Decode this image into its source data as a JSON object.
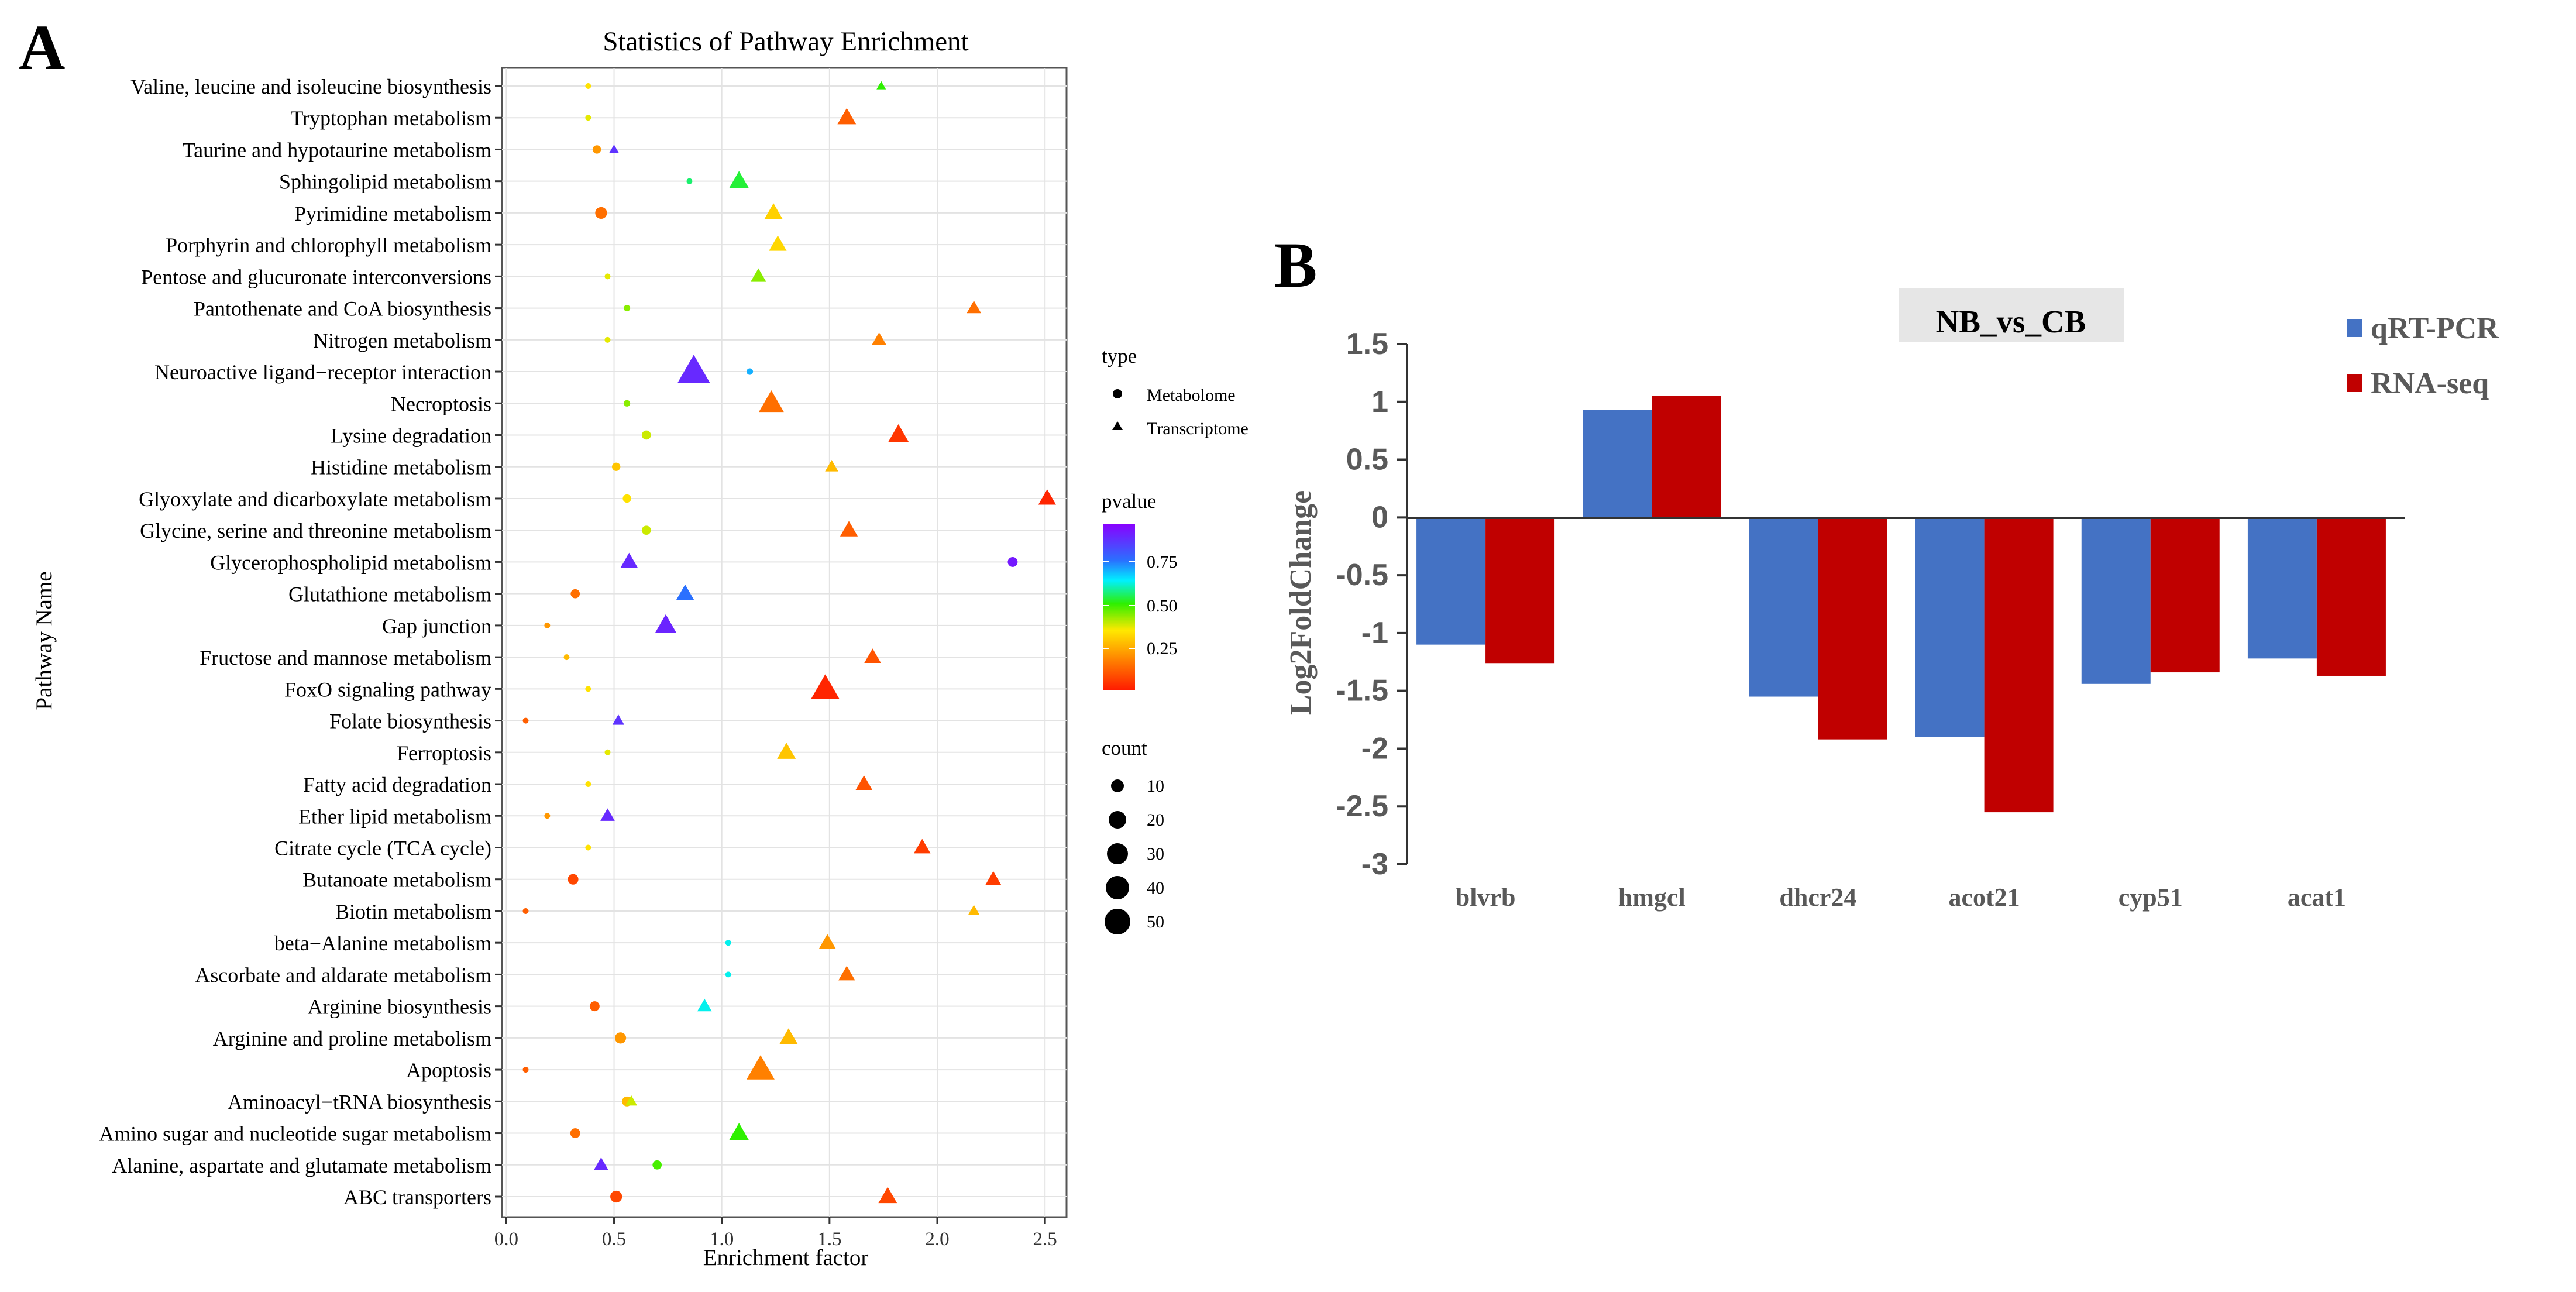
{
  "chart_data": [
    {
      "panel_label": "A",
      "type": "scatter",
      "title": "Statistics of Pathway Enrichment",
      "xlabel": "Enrichment factor",
      "ylabel": "Pathway Name",
      "xlim": [
        -0.02,
        2.6
      ],
      "x_ticks": [
        "0.0",
        "0.5",
        "1.0",
        "1.5",
        "2.0",
        "2.5"
      ],
      "grid": true,
      "legend_type": {
        "title": "type",
        "items": [
          "Metabolome",
          "Transcriptome"
        ]
      },
      "legend_pvalue": {
        "title": "pvalue",
        "ticks": [
          "0.75",
          "0.50",
          "0.25"
        ]
      },
      "legend_count": {
        "title": "count",
        "items": [
          "10",
          "20",
          "30",
          "40",
          "50"
        ]
      },
      "categories": [
        "Valine, leucine and isoleucine biosynthesis",
        "Tryptophan metabolism",
        "Taurine and hypotaurine metabolism",
        "Sphingolipid metabolism",
        "Pyrimidine metabolism",
        "Porphyrin and chlorophyll metabolism",
        "Pentose and glucuronate interconversions",
        "Pantothenate and CoA biosynthesis",
        "Nitrogen metabolism",
        "Neuroactive ligand−receptor interaction",
        "Necroptosis",
        "Lysine degradation",
        "Histidine metabolism",
        "Glyoxylate and dicarboxylate metabolism",
        "Glycine, serine and threonine metabolism",
        "Glycerophospholipid metabolism",
        "Glutathione metabolism",
        "Gap junction",
        "Fructose and mannose metabolism",
        "FoxO signaling pathway",
        "Folate biosynthesis",
        "Ferroptosis",
        "Fatty acid degradation",
        "Ether lipid metabolism",
        "Citrate cycle (TCA cycle)",
        "Butanoate metabolism",
        "Biotin metabolism",
        "beta−Alanine metabolism",
        "Ascorbate and aldarate metabolism",
        "Arginine biosynthesis",
        "Arginine and proline metabolism",
        "Apoptosis",
        "Aminoacyl−tRNA biosynthesis",
        "Amino sugar and nucleotide sugar metabolism",
        "Alanine, aspartate and glutamate metabolism",
        "ABC transporters"
      ],
      "series": [
        {
          "name": "Metabolome",
          "points": [
            {
              "row": 0,
              "x": 0.38,
              "count": 2,
              "pvalue": 0.35
            },
            {
              "row": 1,
              "x": 0.38,
              "count": 2,
              "pvalue": 0.38
            },
            {
              "row": 2,
              "x": 0.42,
              "count": 5,
              "pvalue": 0.22
            },
            {
              "row": 3,
              "x": 0.85,
              "count": 2,
              "pvalue": 0.58
            },
            {
              "row": 4,
              "x": 0.44,
              "count": 10,
              "pvalue": 0.15
            },
            {
              "row": 6,
              "x": 0.47,
              "count": 2,
              "pvalue": 0.38
            },
            {
              "row": 7,
              "x": 0.56,
              "count": 3,
              "pvalue": 0.45
            },
            {
              "row": 8,
              "x": 0.47,
              "count": 2,
              "pvalue": 0.38
            },
            {
              "row": 9,
              "x": 1.13,
              "count": 3,
              "pvalue": 0.72
            },
            {
              "row": 10,
              "x": 0.56,
              "count": 3,
              "pvalue": 0.45
            },
            {
              "row": 11,
              "x": 0.65,
              "count": 6,
              "pvalue": 0.4
            },
            {
              "row": 12,
              "x": 0.51,
              "count": 5,
              "pvalue": 0.3
            },
            {
              "row": 13,
              "x": 0.56,
              "count": 5,
              "pvalue": 0.35
            },
            {
              "row": 14,
              "x": 0.65,
              "count": 6,
              "pvalue": 0.4
            },
            {
              "row": 15,
              "x": 2.35,
              "count": 7,
              "pvalue": 0.95
            },
            {
              "row": 16,
              "x": 0.32,
              "count": 6,
              "pvalue": 0.15
            },
            {
              "row": 17,
              "x": 0.19,
              "count": 2,
              "pvalue": 0.22
            },
            {
              "row": 18,
              "x": 0.28,
              "count": 2,
              "pvalue": 0.28
            },
            {
              "row": 19,
              "x": 0.38,
              "count": 2,
              "pvalue": 0.35
            },
            {
              "row": 20,
              "x": 0.09,
              "count": 2,
              "pvalue": 0.12
            },
            {
              "row": 21,
              "x": 0.47,
              "count": 2,
              "pvalue": 0.38
            },
            {
              "row": 22,
              "x": 0.38,
              "count": 2,
              "pvalue": 0.35
            },
            {
              "row": 23,
              "x": 0.19,
              "count": 2,
              "pvalue": 0.22
            },
            {
              "row": 24,
              "x": 0.38,
              "count": 2,
              "pvalue": 0.35
            },
            {
              "row": 25,
              "x": 0.31,
              "count": 8,
              "pvalue": 0.08
            },
            {
              "row": 26,
              "x": 0.09,
              "count": 2,
              "pvalue": 0.12
            },
            {
              "row": 27,
              "x": 1.03,
              "count": 2,
              "pvalue": 0.65
            },
            {
              "row": 28,
              "x": 1.03,
              "count": 2,
              "pvalue": 0.65
            },
            {
              "row": 29,
              "x": 0.41,
              "count": 7,
              "pvalue": 0.12
            },
            {
              "row": 30,
              "x": 0.53,
              "count": 9,
              "pvalue": 0.22
            },
            {
              "row": 31,
              "x": 0.09,
              "count": 2,
              "pvalue": 0.12
            },
            {
              "row": 32,
              "x": 0.56,
              "count": 7,
              "pvalue": 0.28
            },
            {
              "row": 33,
              "x": 0.32,
              "count": 7,
              "pvalue": 0.15
            },
            {
              "row": 34,
              "x": 0.7,
              "count": 6,
              "pvalue": 0.5
            },
            {
              "row": 35,
              "x": 0.51,
              "count": 10,
              "pvalue": 0.08
            }
          ]
        },
        {
          "name": "Transcriptome",
          "points": [
            {
              "row": 0,
              "x": 1.74,
              "count": 2,
              "pvalue": 0.52
            },
            {
              "row": 1,
              "x": 1.58,
              "count": 20,
              "pvalue": 0.12
            },
            {
              "row": 2,
              "x": 0.5,
              "count": 2,
              "pvalue": 0.9
            },
            {
              "row": 3,
              "x": 1.08,
              "count": 22,
              "pvalue": 0.55
            },
            {
              "row": 4,
              "x": 1.24,
              "count": 20,
              "pvalue": 0.32
            },
            {
              "row": 5,
              "x": 1.26,
              "count": 18,
              "pvalue": 0.33
            },
            {
              "row": 6,
              "x": 1.17,
              "count": 14,
              "pvalue": 0.45
            },
            {
              "row": 7,
              "x": 2.17,
              "count": 12,
              "pvalue": 0.15
            },
            {
              "row": 8,
              "x": 1.73,
              "count": 12,
              "pvalue": 0.18
            },
            {
              "row": 9,
              "x": 0.87,
              "count": 60,
              "pvalue": 0.92
            },
            {
              "row": 10,
              "x": 1.23,
              "count": 36,
              "pvalue": 0.15
            },
            {
              "row": 11,
              "x": 1.82,
              "count": 25,
              "pvalue": 0.05
            },
            {
              "row": 12,
              "x": 1.51,
              "count": 10,
              "pvalue": 0.28
            },
            {
              "row": 13,
              "x": 2.51,
              "count": 18,
              "pvalue": 0.02
            },
            {
              "row": 14,
              "x": 1.59,
              "count": 18,
              "pvalue": 0.12
            },
            {
              "row": 15,
              "x": 0.57,
              "count": 18,
              "pvalue": 0.92
            },
            {
              "row": 16,
              "x": 0.83,
              "count": 18,
              "pvalue": 0.78
            },
            {
              "row": 17,
              "x": 0.74,
              "count": 26,
              "pvalue": 0.93
            },
            {
              "row": 18,
              "x": 1.7,
              "count": 16,
              "pvalue": 0.1
            },
            {
              "row": 19,
              "x": 1.48,
              "count": 45,
              "pvalue": 0.02
            },
            {
              "row": 20,
              "x": 0.52,
              "count": 8,
              "pvalue": 0.9
            },
            {
              "row": 21,
              "x": 1.3,
              "count": 20,
              "pvalue": 0.3
            },
            {
              "row": 22,
              "x": 1.66,
              "count": 16,
              "pvalue": 0.1
            },
            {
              "row": 23,
              "x": 0.47,
              "count": 12,
              "pvalue": 0.92
            },
            {
              "row": 24,
              "x": 1.93,
              "count": 16,
              "pvalue": 0.06
            },
            {
              "row": 25,
              "x": 2.26,
              "count": 14,
              "pvalue": 0.06
            },
            {
              "row": 26,
              "x": 2.17,
              "count": 8,
              "pvalue": 0.28
            },
            {
              "row": 27,
              "x": 1.49,
              "count": 16,
              "pvalue": 0.22
            },
            {
              "row": 28,
              "x": 1.58,
              "count": 16,
              "pvalue": 0.15
            },
            {
              "row": 29,
              "x": 0.92,
              "count": 12,
              "pvalue": 0.65
            },
            {
              "row": 30,
              "x": 1.31,
              "count": 20,
              "pvalue": 0.28
            },
            {
              "row": 31,
              "x": 1.18,
              "count": 45,
              "pvalue": 0.18
            },
            {
              "row": 32,
              "x": 0.58,
              "count": 8,
              "pvalue": 0.4
            },
            {
              "row": 33,
              "x": 1.08,
              "count": 22,
              "pvalue": 0.52
            },
            {
              "row": 34,
              "x": 0.44,
              "count": 12,
              "pvalue": 0.92
            },
            {
              "row": 35,
              "x": 1.77,
              "count": 20,
              "pvalue": 0.08
            }
          ]
        }
      ]
    },
    {
      "panel_label": "B",
      "type": "bar",
      "title": "NB_vs_CB",
      "xlabel": "",
      "ylabel": "Log2FoldChange",
      "ylim": [
        -3,
        1.5
      ],
      "y_ticks": [
        "1.5",
        "1",
        "0.5",
        "0",
        "-0.5",
        "-1",
        "-1.5",
        "-2",
        "-2.5",
        "-3"
      ],
      "categories": [
        "blvrb",
        "hmgcl",
        "dhcr24",
        "acot21",
        "cyp51",
        "acat1"
      ],
      "legend_placement": "top-right",
      "series": [
        {
          "name": "qRT-PCR",
          "color": "#4472c4",
          "values": [
            -1.1,
            0.93,
            -1.55,
            -1.9,
            -1.44,
            -1.22
          ]
        },
        {
          "name": "RNA-seq",
          "color": "#c00000",
          "values": [
            -1.26,
            1.05,
            -1.92,
            -2.55,
            -1.34,
            -1.37
          ]
        }
      ]
    }
  ]
}
